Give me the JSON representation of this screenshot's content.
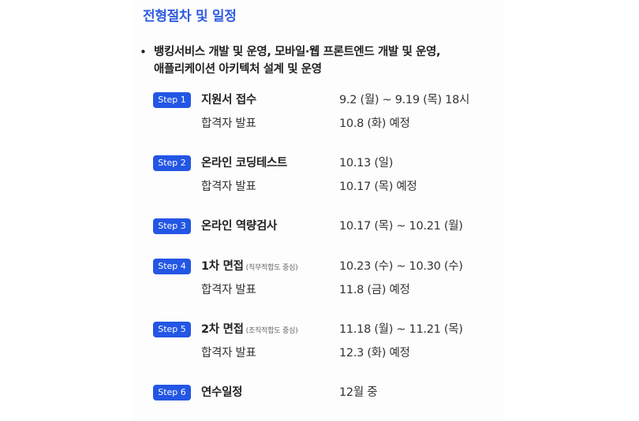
{
  "section": {
    "title": "전형절차 및 일정"
  },
  "position": {
    "line1": "뱅킹서비스 개발 및 운영, 모바일·웹 프론트엔드 개발 및 운영,",
    "line2": "애플리케이션 아키텍처 설계 및 운영"
  },
  "steps": [
    {
      "badge": "Step 1",
      "name": "지원서 접수",
      "note": "",
      "date": "9.2 (월) ~ 9.19 (목) 18시",
      "sub_label": "합격자 발표",
      "sub_date": "10.8 (화) 예정"
    },
    {
      "badge": "Step 2",
      "name": "온라인 코딩테스트",
      "note": "",
      "date": "10.13 (일)",
      "sub_label": "합격자 발표",
      "sub_date": "10.17 (목) 예정"
    },
    {
      "badge": "Step 3",
      "name": "온라인 역량검사",
      "note": "",
      "date": "10.17 (목) ~ 10.21 (월)",
      "sub_label": "",
      "sub_date": ""
    },
    {
      "badge": "Step 4",
      "name": "1차 면접",
      "note": "(직무적합도 중심)",
      "date": "10.23 (수) ~ 10.30 (수)",
      "sub_label": "합격자 발표",
      "sub_date": "11.8 (금) 예정"
    },
    {
      "badge": "Step 5",
      "name": "2차 면접",
      "note": "(조직적합도 중심)",
      "date": "11.18 (월) ~ 11.21 (목)",
      "sub_label": "합격자 발표",
      "sub_date": "12.3 (화) 예정"
    },
    {
      "badge": "Step 6",
      "name": "연수일정",
      "note": "",
      "date": "12월 중",
      "sub_label": "",
      "sub_date": ""
    }
  ],
  "colors": {
    "title": "#2f5be0",
    "badge": "#2356e4"
  }
}
